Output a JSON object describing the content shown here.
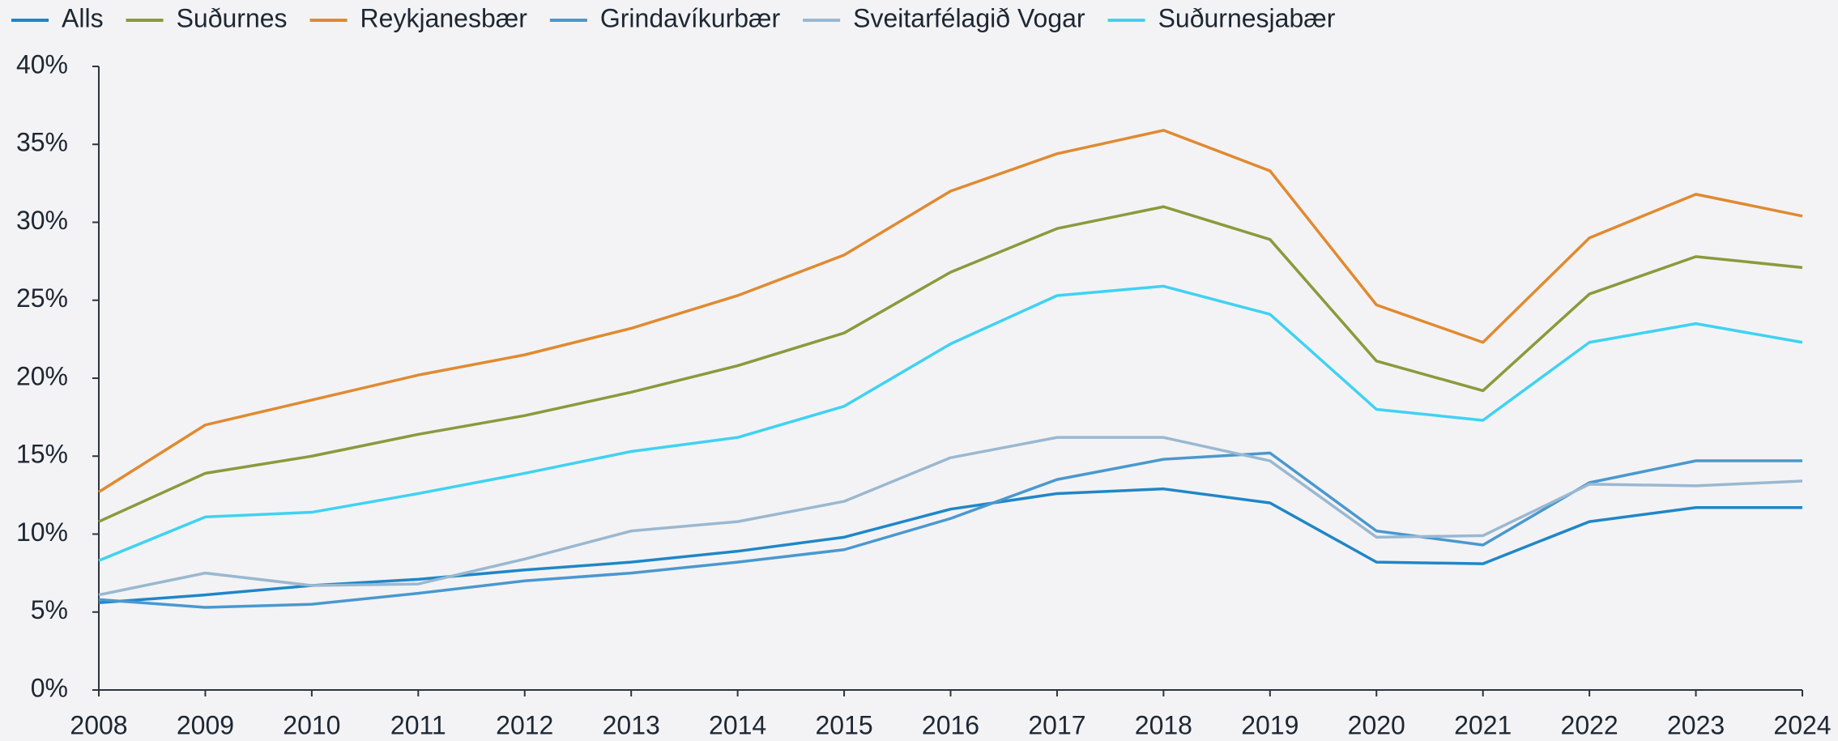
{
  "chart_data": {
    "type": "line",
    "categories": [
      "2008",
      "2009",
      "2010",
      "2011",
      "2012",
      "2013",
      "2014",
      "2015",
      "2016",
      "2017",
      "2018",
      "2019",
      "2020",
      "2021",
      "2022",
      "2023",
      "2024"
    ],
    "series": [
      {
        "name": "Alls",
        "color": "#1f86c8",
        "values": [
          5.6,
          6.1,
          6.7,
          7.1,
          7.7,
          8.2,
          8.9,
          9.8,
          11.6,
          12.6,
          12.9,
          12.0,
          8.2,
          8.1,
          10.8,
          11.7,
          11.7
        ]
      },
      {
        "name": "Suðurnes",
        "color": "#8a9a3c",
        "values": [
          10.8,
          13.9,
          15.0,
          16.4,
          17.6,
          19.1,
          20.8,
          22.9,
          26.8,
          29.6,
          31.0,
          28.9,
          21.1,
          19.2,
          25.4,
          27.8,
          27.1
        ]
      },
      {
        "name": "Reykjanesbær",
        "color": "#e08a30",
        "values": [
          12.7,
          17.0,
          18.6,
          20.2,
          21.5,
          23.2,
          25.3,
          27.9,
          32.0,
          34.4,
          35.9,
          33.3,
          24.7,
          22.3,
          29.0,
          31.8,
          30.4
        ]
      },
      {
        "name": "Grindavíkurbær",
        "color": "#4a98cf",
        "values": [
          5.8,
          5.3,
          5.5,
          6.2,
          7.0,
          7.5,
          8.2,
          9.0,
          11.0,
          13.5,
          14.8,
          15.2,
          10.2,
          9.3,
          13.3,
          14.7,
          14.7
        ]
      },
      {
        "name": "Sveitarfélagið Vogar",
        "color": "#9ab8d0",
        "values": [
          6.1,
          7.5,
          6.7,
          6.8,
          8.4,
          10.2,
          10.8,
          12.1,
          14.9,
          16.2,
          16.2,
          14.7,
          9.8,
          9.9,
          13.2,
          13.1,
          13.4
        ]
      },
      {
        "name": "Suðurnesjabær",
        "color": "#3fd2f2",
        "values": [
          8.3,
          11.1,
          11.4,
          12.6,
          13.9,
          15.3,
          16.2,
          18.2,
          22.2,
          25.3,
          25.9,
          24.1,
          18.0,
          17.3,
          22.3,
          23.5,
          22.3
        ]
      }
    ],
    "ylim": [
      0,
      40
    ],
    "yticks": [
      {
        "value": 0,
        "label": "0%"
      },
      {
        "value": 5,
        "label": "5%"
      },
      {
        "value": 10,
        "label": "10%"
      },
      {
        "value": 15,
        "label": "15%"
      },
      {
        "value": 20,
        "label": "20%"
      },
      {
        "value": 25,
        "label": "25%"
      },
      {
        "value": 30,
        "label": "30%"
      },
      {
        "value": 35,
        "label": "35%"
      },
      {
        "value": 40,
        "label": "40%"
      }
    ],
    "legend": "top-left"
  }
}
